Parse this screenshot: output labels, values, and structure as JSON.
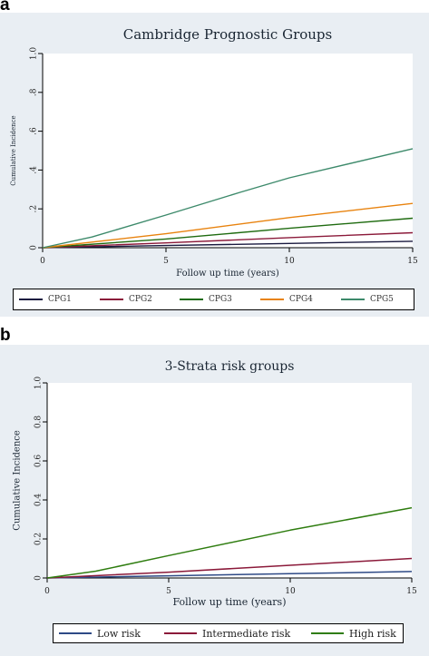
{
  "panels": [
    {
      "letter": "a",
      "legend_labels": [
        "CPG1",
        "CPG2",
        "CPG3",
        "CPG4",
        "CPG5"
      ]
    },
    {
      "letter": "b",
      "legend_labels": [
        "Low risk",
        "Intermediate risk",
        "High risk"
      ]
    }
  ],
  "chart_data": [
    {
      "type": "line",
      "title": "Cambridge Prognostic Groups",
      "xlabel": "Follow up time (years)",
      "ylabel": "Cumulative Incidence",
      "xlim": [
        0,
        15
      ],
      "ylim": [
        0,
        1
      ],
      "xticks": [
        0,
        5,
        10,
        15
      ],
      "yticks": [
        0,
        0.2,
        0.4,
        0.6,
        0.8,
        1.0
      ],
      "ytick_labels": [
        "0",
        ".2",
        ".4",
        ".6",
        ".8",
        "1.0"
      ],
      "grid": false,
      "legend_position": "bottom",
      "series": [
        {
          "name": "CPG1",
          "color": "#1a1a40",
          "x": [
            0,
            5,
            10,
            15
          ],
          "y": [
            0,
            0.011,
            0.022,
            0.033
          ]
        },
        {
          "name": "CPG2",
          "color": "#8b1a3a",
          "x": [
            0,
            5,
            10,
            15
          ],
          "y": [
            0,
            0.025,
            0.052,
            0.077
          ]
        },
        {
          "name": "CPG3",
          "color": "#1f6b10",
          "x": [
            0,
            5,
            10,
            15
          ],
          "y": [
            0,
            0.045,
            0.1,
            0.152
          ]
        },
        {
          "name": "CPG4",
          "color": "#e8830f",
          "x": [
            0,
            5,
            10,
            15
          ],
          "y": [
            0,
            0.072,
            0.155,
            0.228
          ]
        },
        {
          "name": "CPG5",
          "color": "#3d8a6b",
          "x": [
            0,
            2,
            5,
            8,
            10,
            15
          ],
          "y": [
            0,
            0.055,
            0.168,
            0.285,
            0.36,
            0.51
          ]
        }
      ]
    },
    {
      "type": "line",
      "title": "3-Strata risk groups",
      "xlabel": "Follow up time (years)",
      "ylabel": "Cumulative Incidence",
      "xlim": [
        0,
        15
      ],
      "ylim": [
        0,
        1
      ],
      "xticks": [
        0,
        5,
        10,
        15
      ],
      "yticks": [
        0,
        0.2,
        0.4,
        0.6,
        0.8,
        1.0
      ],
      "ytick_labels": [
        "0",
        "0.2",
        "0.4",
        "0.6",
        "0.8",
        "1.0"
      ],
      "grid": false,
      "legend_position": "bottom",
      "series": [
        {
          "name": "Low risk",
          "color": "#2e4a86",
          "x": [
            0,
            5,
            10,
            15
          ],
          "y": [
            0,
            0.011,
            0.022,
            0.033
          ]
        },
        {
          "name": "Intermediate risk",
          "color": "#8b1a3a",
          "x": [
            0,
            5,
            10,
            15
          ],
          "y": [
            0,
            0.03,
            0.065,
            0.1
          ]
        },
        {
          "name": "High risk",
          "color": "#2f7d10",
          "x": [
            0,
            2,
            5,
            10,
            15
          ],
          "y": [
            0,
            0.035,
            0.115,
            0.245,
            0.36
          ]
        }
      ]
    }
  ]
}
